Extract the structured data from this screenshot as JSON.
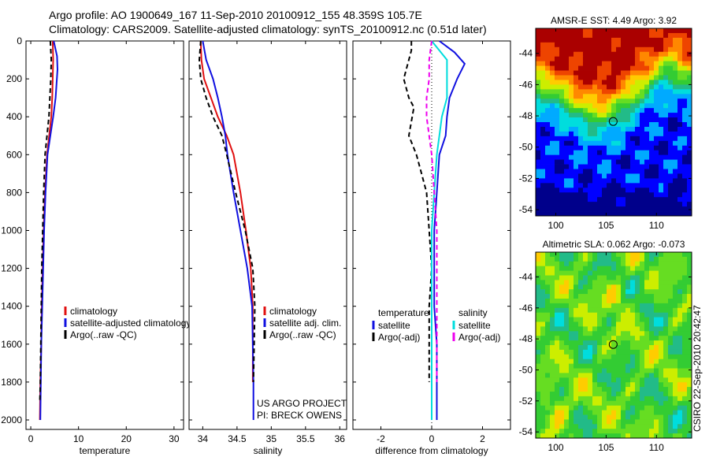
{
  "header": {
    "line1": "Argo profile: AO 1900649_167 11-Sep-2010 20100912_155 48.359S 105.7E",
    "line2": "Climatology: CARS2009. Satellite-adjusted climatology: synTS_20100912.nc (0.51d later)"
  },
  "credit": "CSIRO 22-Sep-2010 20:42:47",
  "colors": {
    "climatology": "#e01010",
    "satellite": "#1010e0",
    "argo": "#000000",
    "sal_satellite": "#00dddd",
    "sal_argo": "#ee00ee"
  },
  "chart_data": [
    {
      "type": "line",
      "xlabel": "temperature",
      "xticks": [
        "0",
        "10",
        "20",
        "30"
      ],
      "xlim": [
        -1,
        32
      ],
      "ylim": [
        0,
        2050
      ],
      "yreverse": true,
      "yticks": [
        "0",
        "200",
        "400",
        "600",
        "800",
        "1000",
        "1200",
        "1400",
        "1600",
        "1800",
        "2000"
      ],
      "legend_placement": "lower-right",
      "series": [
        {
          "name": "climatology",
          "x": [
            4.6,
            4.7,
            4.6,
            4.5,
            4.3,
            3.4,
            3.0,
            2.7,
            2.5,
            2.3,
            2.2,
            2.0,
            1.9
          ],
          "y": [
            0,
            100,
            200,
            300,
            400,
            600,
            800,
            1000,
            1200,
            1400,
            1600,
            1800,
            2000
          ]
        },
        {
          "name": "satellite-adjusted climatology",
          "x": [
            4.8,
            5.5,
            5.6,
            5.2,
            4.7,
            3.5,
            3.1,
            2.8,
            2.6,
            2.4,
            2.2,
            2.1,
            2.0
          ],
          "y": [
            0,
            80,
            150,
            300,
            400,
            600,
            800,
            1000,
            1200,
            1400,
            1600,
            1800,
            2000
          ]
        },
        {
          "name": "Argo(..raw -QC)",
          "x": [
            4.1,
            4.3,
            4.2,
            4.0,
            3.8,
            3.0,
            2.7,
            2.5,
            2.3,
            2.2,
            2.1,
            2.0,
            1.9
          ],
          "y": [
            0,
            100,
            200,
            300,
            400,
            600,
            800,
            1000,
            1200,
            1400,
            1600,
            1800,
            1900
          ]
        }
      ]
    },
    {
      "type": "line",
      "xlabel": "salinity",
      "xticks": [
        "34",
        "34.5",
        "35",
        "35.5",
        "36"
      ],
      "xlim": [
        33.8,
        36.1
      ],
      "ylim": [
        0,
        2050
      ],
      "yreverse": true,
      "legend_placement": "lower-right",
      "annotations": [
        "US ARGO PROJECT",
        "PI: BRECK OWENS"
      ],
      "series": [
        {
          "name": "climatology",
          "x": [
            33.97,
            33.98,
            34.02,
            34.12,
            34.22,
            34.35,
            34.45,
            34.55,
            34.63,
            34.7,
            34.73,
            34.73,
            34.73
          ],
          "y": [
            0,
            100,
            200,
            300,
            400,
            500,
            600,
            800,
            1000,
            1200,
            1400,
            1600,
            1800
          ]
        },
        {
          "name": "satellite adj. clim.",
          "x": [
            34.0,
            34.05,
            34.15,
            34.22,
            34.28,
            34.33,
            34.36,
            34.45,
            34.55,
            34.65,
            34.72,
            34.73,
            34.74,
            34.74
          ],
          "y": [
            0,
            100,
            200,
            300,
            400,
            500,
            600,
            800,
            1000,
            1200,
            1400,
            1600,
            1800,
            2000
          ]
        },
        {
          "name": "Argo(..raw -QC)",
          "x": [
            33.97,
            33.95,
            33.97,
            34.05,
            34.15,
            34.28,
            34.35,
            34.48,
            34.62,
            34.73,
            34.76,
            34.75,
            34.74
          ],
          "y": [
            0,
            100,
            200,
            300,
            400,
            500,
            600,
            800,
            1000,
            1200,
            1400,
            1600,
            1800
          ]
        }
      ]
    },
    {
      "type": "line",
      "xlabel": "difference from climatology",
      "xticks": [
        "-2",
        "0",
        "2"
      ],
      "xlim": [
        -3.1,
        3.1
      ],
      "ylim": [
        0,
        2050
      ],
      "yreverse": true,
      "legend_placement": "lower",
      "legend_headers": [
        "temperature",
        "salinity"
      ],
      "series": [
        {
          "name": "satellite",
          "group": "temperature",
          "x": [
            0.3,
            0.9,
            1.3,
            1.0,
            0.7,
            0.6,
            0.55,
            0.3,
            0.2,
            0.1,
            0.1,
            0.1,
            0.2,
            0.2
          ],
          "y": [
            0,
            60,
            120,
            200,
            300,
            400,
            500,
            600,
            800,
            1000,
            1200,
            1400,
            1600,
            2000
          ]
        },
        {
          "name": "Argo(-adj)",
          "group": "temperature",
          "x": [
            -0.8,
            -0.8,
            -1.1,
            -0.9,
            -0.7,
            -0.9,
            -0.6,
            -0.4,
            -0.2,
            -0.1,
            0.0,
            -0.1,
            -0.1
          ],
          "y": [
            0,
            50,
            200,
            300,
            350,
            500,
            600,
            700,
            800,
            1000,
            1200,
            1400,
            1800
          ]
        },
        {
          "name": "satellite",
          "group": "salinity",
          "x": [
            0.0,
            0.6,
            0.6,
            0.6,
            0.4,
            0.3,
            0.2,
            0.1,
            0.0,
            0.0,
            0.0,
            0.0,
            0.0
          ],
          "y": [
            0,
            100,
            200,
            300,
            400,
            500,
            600,
            800,
            1000,
            1200,
            1400,
            1600,
            2000
          ]
        },
        {
          "name": "Argo(-adj)",
          "group": "salinity",
          "x": [
            0.0,
            -0.1,
            -0.1,
            -0.2,
            -0.2,
            -0.1,
            0.0,
            0.1,
            0.2,
            0.2,
            0.2,
            0.2,
            0.2
          ],
          "y": [
            0,
            100,
            200,
            300,
            400,
            500,
            600,
            800,
            1000,
            1200,
            1400,
            1600,
            1800
          ]
        }
      ]
    },
    {
      "type": "heatmap",
      "title": "AMSR-E SST: 4.49 Argo: 3.92",
      "xticks": [
        "100",
        "105",
        "110"
      ],
      "yticks": [
        "-44",
        "-46",
        "-48",
        "-50",
        "-52",
        "-54"
      ],
      "xlim": [
        98,
        113.5
      ],
      "ylim": [
        -54.4,
        -42.4
      ],
      "marker": {
        "lon": 105.7,
        "lat": -48.359
      },
      "palette": [
        "#00008b",
        "#0000ff",
        "#00aaff",
        "#00dddd",
        "#22bb88",
        "#33cc33",
        "#66dd22",
        "#ccee00",
        "#ffcc00",
        "#ff8800",
        "#ee4400",
        "#aa0000"
      ]
    },
    {
      "type": "heatmap",
      "title": "Altimetric SLA: 0.062 Argo: -0.073",
      "xticks": [
        "100",
        "105",
        "110"
      ],
      "yticks": [
        "-44",
        "-46",
        "-48",
        "-50",
        "-52",
        "-54"
      ],
      "xlim": [
        98,
        113.5
      ],
      "ylim": [
        -54.4,
        -42.4
      ],
      "marker": {
        "lon": 105.7,
        "lat": -48.359
      },
      "palette": [
        "#00aaff",
        "#00dddd",
        "#22bb88",
        "#33cc33",
        "#66dd22",
        "#ccee00",
        "#ffcc00",
        "#ff8800"
      ]
    }
  ]
}
